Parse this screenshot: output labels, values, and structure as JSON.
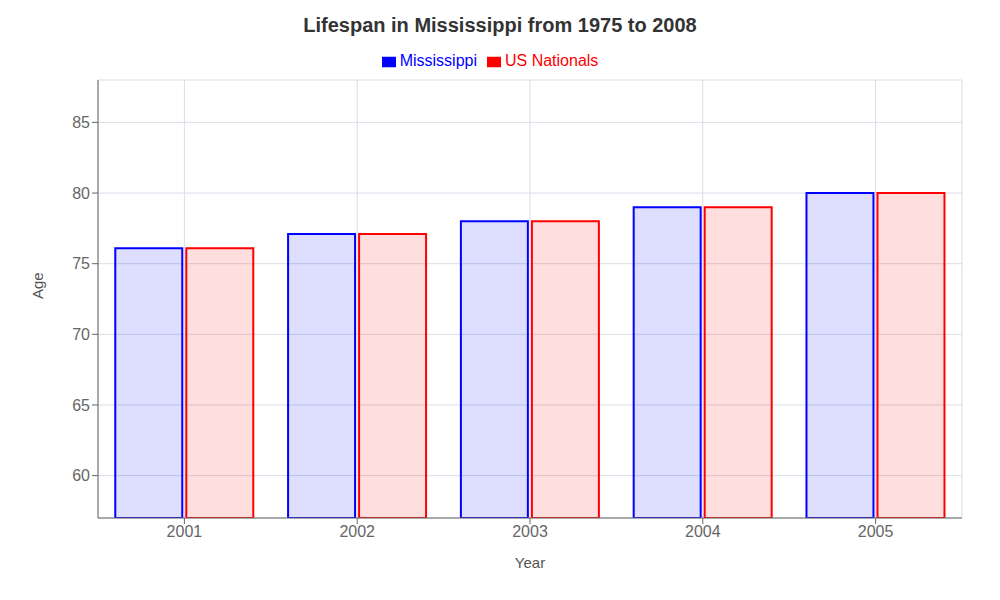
{
  "chart_data": {
    "type": "bar",
    "title": "Lifespan in Mississippi from 1975 to 2008",
    "x_label": "Year",
    "y_label": "Age",
    "categories": [
      "2001",
      "2002",
      "2003",
      "2004",
      "2005"
    ],
    "series": [
      {
        "name": "Mississippi",
        "color": "#0000ff",
        "values": [
          76.1,
          77.1,
          78.0,
          79.0,
          80.0
        ]
      },
      {
        "name": "US Nationals",
        "color": "#ff0000",
        "values": [
          76.1,
          77.1,
          78.0,
          79.0,
          80.0
        ]
      }
    ],
    "ylim": [
      57,
      88
    ],
    "yticks": [
      60,
      65,
      70,
      75,
      80,
      85
    ],
    "grid": true,
    "legend": "top"
  }
}
